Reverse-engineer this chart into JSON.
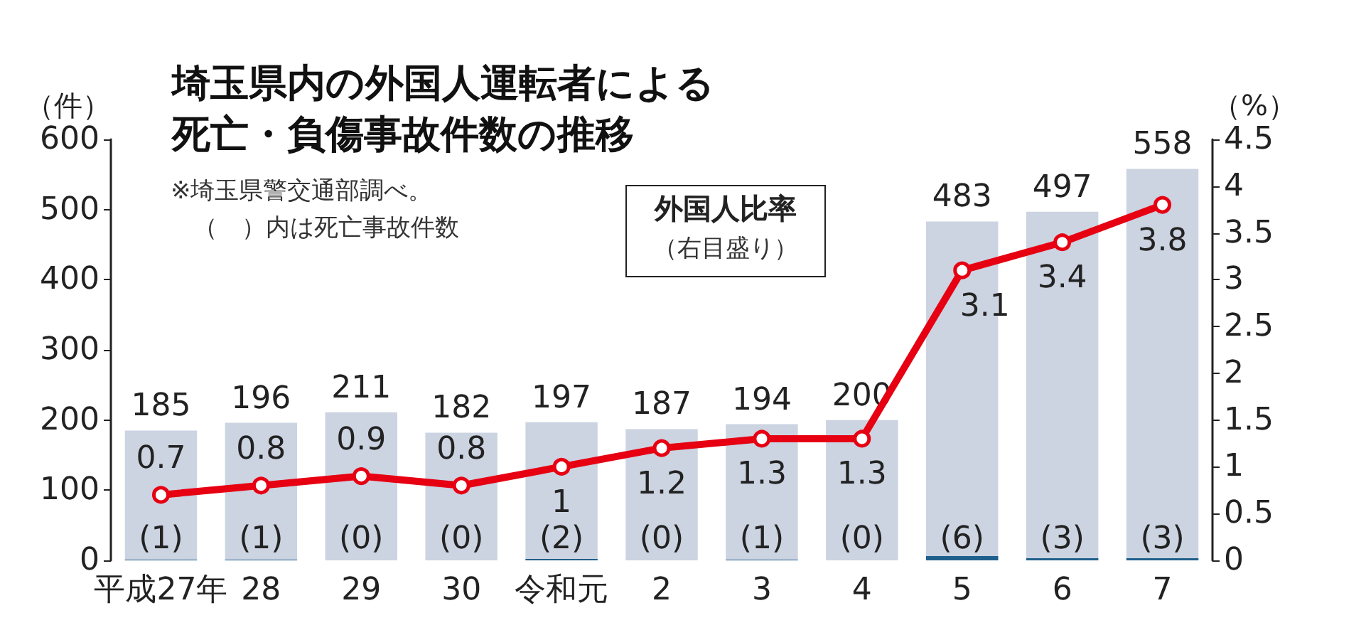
{
  "chart_data": {
    "type": "bar",
    "title": "埼玉県内の外国人運転者による死亡・負傷事故件数の推移",
    "ylabel": "（件）",
    "y2label": "（%）",
    "annotations": [
      "※埼玉県警交通部調べ。",
      "（　）内は死亡事故件数"
    ],
    "categories": [
      "平成27年",
      "28",
      "29",
      "30",
      "令和元",
      "2",
      "3",
      "4",
      "5",
      "6",
      "7"
    ],
    "series": [
      {
        "color": "#ccd3e1",
        "values": [
          185,
          196,
          211,
          182,
          197,
          187,
          194,
          200,
          483,
          497,
          558
        ]
      },
      {
        "type": "bar",
        "color": "#1f5f8b",
        "values": [
          1,
          1,
          0,
          0,
          2,
          0,
          1,
          0,
          6,
          3,
          3
        ],
        "value_labels": [
          "(1)",
          "(1)",
          "(0)",
          "(0)",
          "(2)",
          "(0)",
          "(1)",
          "(0)",
          "(6)",
          "(3)",
          "(3)"
        ]
      },
      {
        "type": "line",
        "name": "外国人比率（右目盛り）",
        "axis": "y2",
        "color": "#e60012",
        "values": [
          0.7,
          0.8,
          0.9,
          0.8,
          1,
          1.2,
          1.3,
          1.3,
          3.1,
          3.4,
          3.8
        ]
      }
    ],
    "ylim": [
      0,
      600
    ],
    "yticks": [
      0,
      100,
      200,
      300,
      400,
      500,
      600
    ],
    "y2lim": [
      0,
      4.5
    ],
    "y2ticks": [
      0,
      0.5,
      1,
      1.5,
      2,
      2.5,
      3,
      3.5,
      4,
      4.5
    ],
    "data_labels": true,
    "grid": false,
    "legend": false,
    "marker": "circle",
    "line_style": "solid"
  }
}
